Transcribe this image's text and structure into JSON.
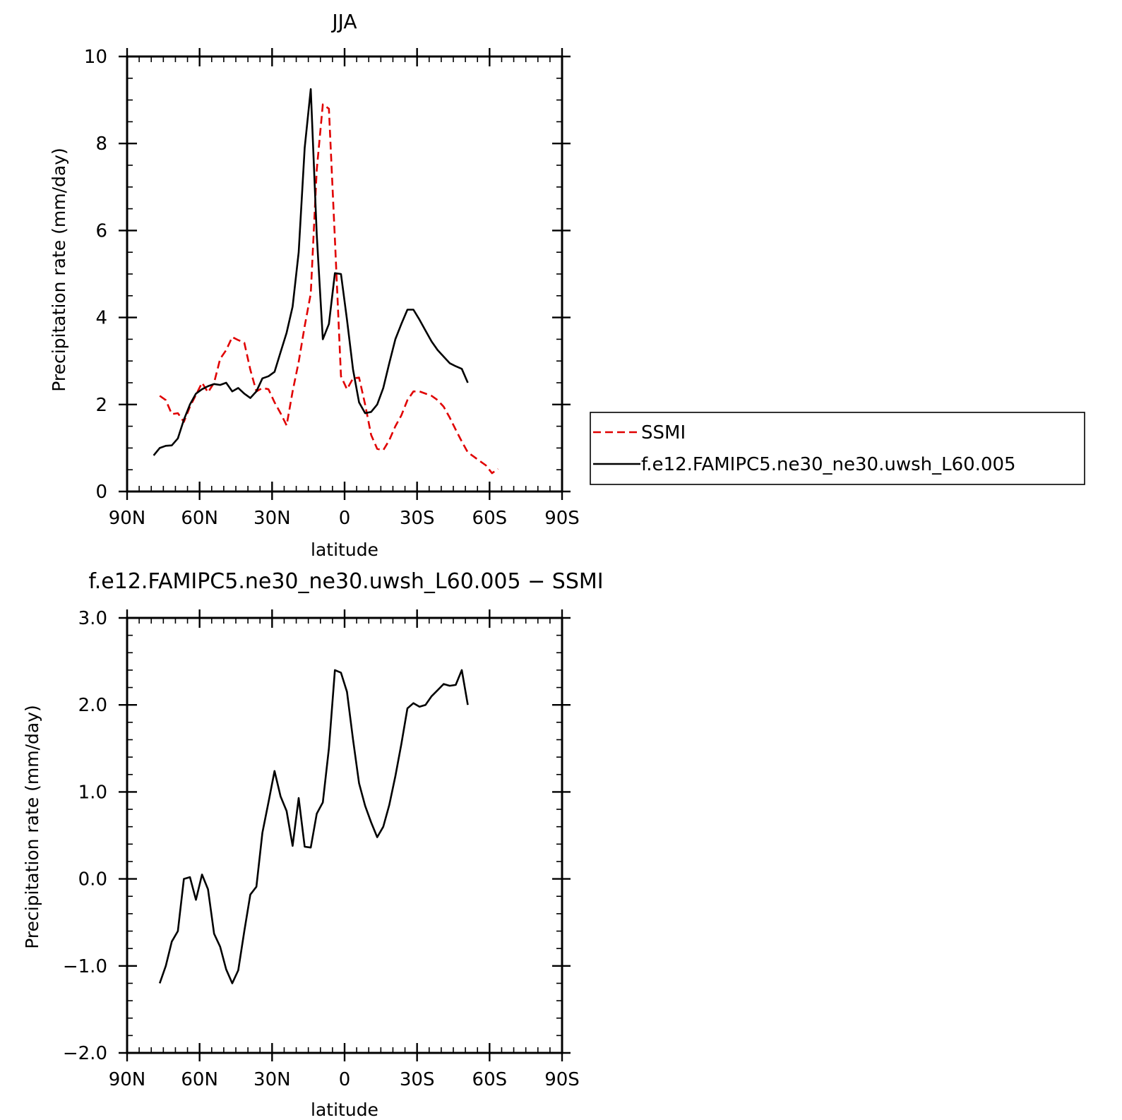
{
  "chart_data": [
    {
      "type": "line",
      "title": "JJA",
      "xlabel": "latitude",
      "ylabel": "Precipitation rate (mm/day)",
      "xlim": [
        -90,
        90
      ],
      "ylim": [
        0,
        10
      ],
      "x_ticks": [
        {
          "v": -90,
          "label": "90N"
        },
        {
          "v": -60,
          "label": "60N"
        },
        {
          "v": -30,
          "label": "30N"
        },
        {
          "v": 0,
          "label": "0"
        },
        {
          "v": 30,
          "label": "30S"
        },
        {
          "v": 60,
          "label": "60S"
        },
        {
          "v": 90,
          "label": "90S"
        }
      ],
      "y_ticks": [
        {
          "v": 0,
          "label": "0"
        },
        {
          "v": 2,
          "label": "2"
        },
        {
          "v": 4,
          "label": "4"
        },
        {
          "v": 6,
          "label": "6"
        },
        {
          "v": 8,
          "label": "8"
        },
        {
          "v": 10,
          "label": "10"
        }
      ],
      "legend": {
        "placement": "right",
        "entries": [
          {
            "label": "SSMI",
            "series": 0
          },
          {
            "label": "f.e12.FAMIPC5.ne30_ne30.uwsh_L60.005",
            "series": 1
          }
        ]
      },
      "series": [
        {
          "name": "SSMI",
          "color": "#e00000",
          "dash": true,
          "points": [
            [
              -76.5,
              2.2
            ],
            [
              -74,
              2.1
            ],
            [
              -71.5,
              1.78
            ],
            [
              -69,
              1.8
            ],
            [
              -66.5,
              1.6
            ],
            [
              -64,
              1.95
            ],
            [
              -61.5,
              2.22
            ],
            [
              -59,
              2.5
            ],
            [
              -56.5,
              2.28
            ],
            [
              -54,
              2.5
            ],
            [
              -51.5,
              3.05
            ],
            [
              -49,
              3.25
            ],
            [
              -46.5,
              3.55
            ],
            [
              -44,
              3.48
            ],
            [
              -41.5,
              3.42
            ],
            [
              -39,
              2.8
            ],
            [
              -36.5,
              2.3
            ],
            [
              -34,
              2.38
            ],
            [
              -31.5,
              2.35
            ],
            [
              -29,
              2.05
            ],
            [
              -26.5,
              1.8
            ],
            [
              -24,
              1.52
            ],
            [
              -21.5,
              2.3
            ],
            [
              -19,
              2.98
            ],
            [
              -16.5,
              3.8
            ],
            [
              -14,
              4.55
            ],
            [
              -11.5,
              7.4
            ],
            [
              -9,
              8.9
            ],
            [
              -6.5,
              8.8
            ],
            [
              -4,
              5.8
            ],
            [
              -1.5,
              2.65
            ],
            [
              1,
              2.35
            ],
            [
              3.5,
              2.6
            ],
            [
              6,
              2.62
            ],
            [
              8.5,
              2.0
            ],
            [
              11,
              1.3
            ],
            [
              13.5,
              0.98
            ],
            [
              16,
              0.95
            ],
            [
              18.5,
              1.18
            ],
            [
              21,
              1.5
            ],
            [
              23.5,
              1.75
            ],
            [
              26,
              2.1
            ],
            [
              28.5,
              2.3
            ],
            [
              31,
              2.3
            ],
            [
              33.5,
              2.25
            ],
            [
              36,
              2.2
            ],
            [
              38.5,
              2.1
            ],
            [
              41,
              1.95
            ],
            [
              43.5,
              1.7
            ],
            [
              46,
              1.42
            ],
            [
              48.5,
              1.15
            ],
            [
              51,
              0.9
            ],
            [
              53.5,
              0.8
            ],
            [
              56,
              0.7
            ],
            [
              58.5,
              0.6
            ],
            [
              61,
              0.42
            ],
            [
              63.5,
              0.52
            ]
          ]
        },
        {
          "name": "f.e12.FAMIPC5.ne30_ne30.uwsh_L60.005",
          "color": "#000000",
          "dash": false,
          "points": [
            [
              -79,
              0.83
            ],
            [
              -76.5,
              1.0
            ],
            [
              -74,
              1.05
            ],
            [
              -71.5,
              1.06
            ],
            [
              -69,
              1.22
            ],
            [
              -66.5,
              1.65
            ],
            [
              -64,
              2.0
            ],
            [
              -61.5,
              2.25
            ],
            [
              -59,
              2.35
            ],
            [
              -56.5,
              2.42
            ],
            [
              -54,
              2.47
            ],
            [
              -51.5,
              2.45
            ],
            [
              -49,
              2.5
            ],
            [
              -46.5,
              2.3
            ],
            [
              -44,
              2.38
            ],
            [
              -41.5,
              2.25
            ],
            [
              -39,
              2.15
            ],
            [
              -36.5,
              2.3
            ],
            [
              -34,
              2.6
            ],
            [
              -31.5,
              2.65
            ],
            [
              -29,
              2.75
            ],
            [
              -26.5,
              3.2
            ],
            [
              -24,
              3.65
            ],
            [
              -21.5,
              4.25
            ],
            [
              -19,
              5.5
            ],
            [
              -16.5,
              7.9
            ],
            [
              -14,
              9.25
            ],
            [
              -11.5,
              5.9
            ],
            [
              -9,
              3.5
            ],
            [
              -6.5,
              3.85
            ],
            [
              -4,
              5.02
            ],
            [
              -1.5,
              5.0
            ],
            [
              1,
              3.95
            ],
            [
              3.5,
              2.8
            ],
            [
              6,
              2.05
            ],
            [
              8.5,
              1.8
            ],
            [
              11,
              1.83
            ],
            [
              13.5,
              2.0
            ],
            [
              16,
              2.38
            ],
            [
              18.5,
              2.95
            ],
            [
              21,
              3.5
            ],
            [
              23.5,
              3.85
            ],
            [
              26,
              4.18
            ],
            [
              28.5,
              4.18
            ],
            [
              31,
              3.95
            ],
            [
              33.5,
              3.7
            ],
            [
              36,
              3.45
            ],
            [
              38.5,
              3.25
            ],
            [
              41,
              3.1
            ],
            [
              43.5,
              2.95
            ],
            [
              46,
              2.88
            ],
            [
              48.5,
              2.82
            ],
            [
              51,
              2.5
            ]
          ]
        }
      ]
    },
    {
      "type": "line",
      "title": "f.e12.FAMIPC5.ne30_ne30.uwsh_L60.005 − SSMI",
      "xlabel": "latitude",
      "ylabel": "Precipitation rate (mm/day)",
      "xlim": [
        -90,
        90
      ],
      "ylim": [
        -2,
        3
      ],
      "x_ticks": [
        {
          "v": -90,
          "label": "90N"
        },
        {
          "v": -60,
          "label": "60N"
        },
        {
          "v": -30,
          "label": "30N"
        },
        {
          "v": 0,
          "label": "0"
        },
        {
          "v": 30,
          "label": "30S"
        },
        {
          "v": 60,
          "label": "60S"
        },
        {
          "v": 90,
          "label": "90S"
        }
      ],
      "y_ticks": [
        {
          "v": -2,
          "label": "−2.0"
        },
        {
          "v": -1,
          "label": "−1.0"
        },
        {
          "v": 0,
          "label": "0.0"
        },
        {
          "v": 1,
          "label": "1.0"
        },
        {
          "v": 2,
          "label": "2.0"
        },
        {
          "v": 3,
          "label": "3.0"
        }
      ],
      "series": [
        {
          "name": "",
          "color": "#000000",
          "dash": false,
          "points": [
            [
              -76.5,
              -1.2
            ],
            [
              -74,
              -1.0
            ],
            [
              -71.5,
              -0.72
            ],
            [
              -69,
              -0.6
            ],
            [
              -66.5,
              0.0
            ],
            [
              -64,
              0.02
            ],
            [
              -61.5,
              -0.24
            ],
            [
              -59,
              0.05
            ],
            [
              -56.5,
              -0.12
            ],
            [
              -54,
              -0.63
            ],
            [
              -51.5,
              -0.78
            ],
            [
              -49,
              -1.04
            ],
            [
              -46.5,
              -1.2
            ],
            [
              -44,
              -1.05
            ],
            [
              -41.5,
              -0.6
            ],
            [
              -39,
              -0.18
            ],
            [
              -36.5,
              -0.09
            ],
            [
              -34,
              0.53
            ],
            [
              -31.5,
              0.88
            ],
            [
              -29,
              1.24
            ],
            [
              -26.5,
              0.95
            ],
            [
              -24,
              0.78
            ],
            [
              -21.5,
              0.38
            ],
            [
              -19,
              0.93
            ],
            [
              -16.5,
              0.37
            ],
            [
              -14,
              0.36
            ],
            [
              -11.5,
              0.75
            ],
            [
              -9,
              0.88
            ],
            [
              -6.5,
              1.5
            ],
            [
              -4,
              2.4
            ],
            [
              -1.5,
              2.37
            ],
            [
              1,
              2.15
            ],
            [
              3.5,
              1.6
            ],
            [
              6,
              1.1
            ],
            [
              8.5,
              0.84
            ],
            [
              11,
              0.65
            ],
            [
              13.5,
              0.48
            ],
            [
              16,
              0.6
            ],
            [
              18.5,
              0.85
            ],
            [
              21,
              1.18
            ],
            [
              23.5,
              1.55
            ],
            [
              26,
              1.96
            ],
            [
              28.5,
              2.02
            ],
            [
              31,
              1.98
            ],
            [
              33.5,
              2.0
            ],
            [
              36,
              2.1
            ],
            [
              38.5,
              2.17
            ],
            [
              41,
              2.24
            ],
            [
              43.5,
              2.22
            ],
            [
              46,
              2.23
            ],
            [
              48.5,
              2.4
            ],
            [
              51,
              2.0
            ]
          ]
        }
      ]
    }
  ]
}
